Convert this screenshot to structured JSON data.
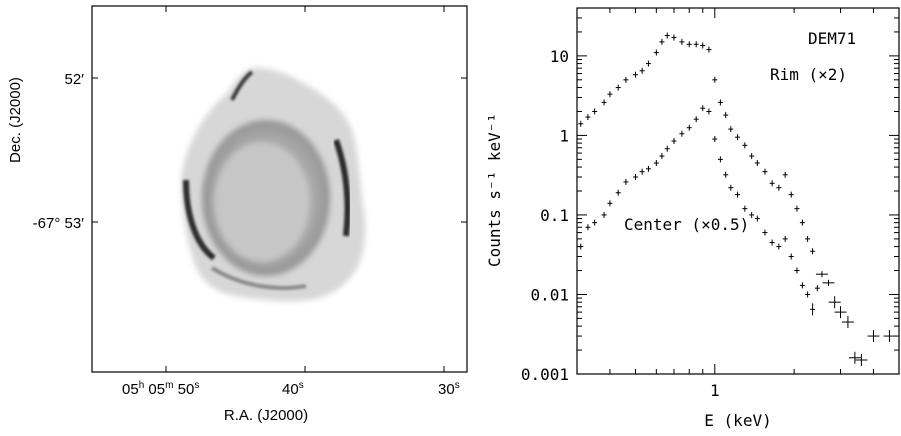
{
  "left_panel": {
    "ylabel": "Dec. (J2000)",
    "xlabel": "R.A. (J2000)",
    "y_ticks": [
      "52′",
      "-67° 53′"
    ],
    "x_ticks": [
      {
        "h": "05",
        "m": "05",
        "s": "50",
        "label": "05h 05m 50s"
      },
      {
        "s": "40",
        "label": "40s"
      },
      {
        "s": "30",
        "label": "30s"
      }
    ]
  },
  "chart_data": [
    {
      "type": "scatter",
      "title": "DEM71",
      "xlabel": "E (keV)",
      "ylabel": "Counts s⁻¹ keV⁻¹",
      "x_scale": "log",
      "y_scale": "log",
      "xlim": [
        0.3,
        5.0
      ],
      "ylim": [
        0.001,
        40
      ],
      "x_ticks": [
        "1"
      ],
      "y_ticks": [
        "0.001",
        "0.01",
        "0.1",
        "1",
        "10"
      ],
      "series": [
        {
          "name": "Rim (×2)",
          "x": [
            0.31,
            0.33,
            0.35,
            0.38,
            0.4,
            0.43,
            0.46,
            0.5,
            0.53,
            0.56,
            0.6,
            0.63,
            0.66,
            0.7,
            0.75,
            0.8,
            0.85,
            0.9,
            0.95,
            1.0,
            1.05,
            1.1,
            1.15,
            1.22,
            1.3,
            1.38,
            1.45,
            1.55,
            1.65,
            1.75,
            1.85,
            1.95,
            2.05,
            2.15,
            2.25,
            2.35
          ],
          "y": [
            1.4,
            1.7,
            2.0,
            2.6,
            3.3,
            4.0,
            5.0,
            5.8,
            6.5,
            8.0,
            11.0,
            15.0,
            18.0,
            17.0,
            15.0,
            14.0,
            14.0,
            13.5,
            12.0,
            5.0,
            2.6,
            1.8,
            1.2,
            0.95,
            0.75,
            0.55,
            0.45,
            0.35,
            0.25,
            0.22,
            0.32,
            0.18,
            0.12,
            0.08,
            0.05,
            0.035
          ]
        },
        {
          "name": "Center (×0.5)",
          "x": [
            0.31,
            0.33,
            0.35,
            0.38,
            0.4,
            0.43,
            0.46,
            0.5,
            0.53,
            0.56,
            0.6,
            0.63,
            0.66,
            0.7,
            0.75,
            0.8,
            0.85,
            0.9,
            0.95,
            1.0,
            1.05,
            1.1,
            1.15,
            1.22,
            1.3,
            1.38,
            1.45,
            1.55,
            1.65,
            1.75,
            1.85,
            1.95,
            2.05,
            2.15,
            2.25,
            2.35,
            2.45,
            2.55,
            2.7,
            2.85,
            3.0,
            3.2,
            3.4,
            3.6,
            4.0,
            4.6
          ],
          "y": [
            0.04,
            0.07,
            0.08,
            0.1,
            0.14,
            0.19,
            0.26,
            0.3,
            0.35,
            0.38,
            0.45,
            0.55,
            0.68,
            0.85,
            1.05,
            1.25,
            1.6,
            2.2,
            2.0,
            0.9,
            0.5,
            0.32,
            0.22,
            0.18,
            0.12,
            0.1,
            0.09,
            0.06,
            0.045,
            0.04,
            0.05,
            0.03,
            0.02,
            0.013,
            0.01,
            0.0065,
            0.012,
            0.018,
            0.014,
            0.008,
            0.006,
            0.0045,
            0.0016,
            0.0015,
            0.003,
            0.003
          ]
        }
      ]
    }
  ]
}
